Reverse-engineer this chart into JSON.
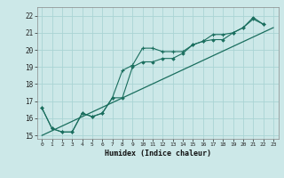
{
  "xlabel": "Humidex (Indice chaleur)",
  "xlim": [
    -0.5,
    23.5
  ],
  "ylim": [
    14.8,
    22.5
  ],
  "yticks": [
    15,
    16,
    17,
    18,
    19,
    20,
    21,
    22
  ],
  "xticks": [
    0,
    1,
    2,
    3,
    4,
    5,
    6,
    7,
    8,
    9,
    10,
    11,
    12,
    13,
    14,
    15,
    16,
    17,
    18,
    19,
    20,
    21,
    22,
    23
  ],
  "bg_color": "#cce8e8",
  "grid_color": "#aad4d4",
  "line_color": "#1a6e5e",
  "line1_x": [
    0,
    1,
    2,
    3,
    4,
    5,
    6,
    7,
    8,
    9,
    10,
    11,
    12,
    13,
    14,
    15,
    16,
    17,
    18,
    19,
    20,
    21,
    22
  ],
  "line1_y": [
    16.6,
    15.4,
    15.2,
    15.2,
    16.3,
    16.1,
    16.3,
    17.2,
    18.8,
    19.1,
    20.1,
    20.1,
    19.9,
    19.9,
    19.9,
    20.3,
    20.5,
    20.9,
    20.9,
    21.0,
    21.3,
    21.8,
    21.5
  ],
  "line2_x": [
    0,
    1,
    2,
    3,
    4,
    5,
    6,
    7,
    8,
    9,
    10,
    11,
    12,
    13,
    14,
    15,
    16,
    17,
    18,
    19,
    20,
    21,
    22
  ],
  "line2_y": [
    16.6,
    15.4,
    15.2,
    15.2,
    16.3,
    16.1,
    16.3,
    17.2,
    17.2,
    19.0,
    19.3,
    19.3,
    19.5,
    19.5,
    19.8,
    20.3,
    20.5,
    20.6,
    20.6,
    21.0,
    21.3,
    21.9,
    21.5
  ],
  "ref_line_x": [
    0,
    23
  ],
  "ref_line_y": [
    15.0,
    21.3
  ]
}
